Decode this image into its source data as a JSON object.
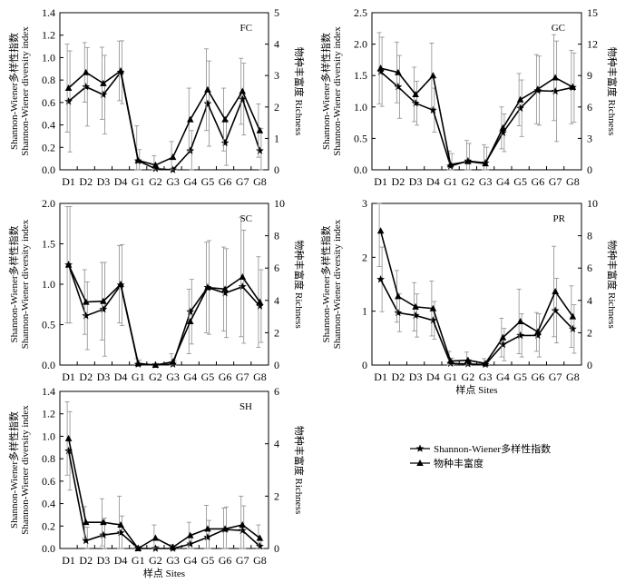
{
  "x_categories": [
    "D1",
    "D2",
    "D3",
    "D4",
    "G1",
    "G2",
    "G3",
    "G4",
    "G5",
    "G6",
    "G7",
    "G8"
  ],
  "legend": {
    "entries": [
      {
        "label": "Shannon-Wiener多样性指数",
        "marker": "star"
      },
      {
        "label": "物种丰富度",
        "marker": "triangle"
      }
    ],
    "placement": "lower-right"
  },
  "chart_data": [
    {
      "type": "line",
      "panel_label": "FC",
      "ylabel_left": [
        "Shannon-Wiener多样性指数",
        "Shannon-Wiener diversity index"
      ],
      "ylabel_right": "物种丰富度 Richness",
      "xlabel": "",
      "ylim_left": [
        0,
        1.4
      ],
      "yticks_left": [
        0,
        0.2,
        0.4,
        0.6,
        0.8,
        1.0,
        1.2,
        1.4
      ],
      "yfmt_left": 1,
      "ylim_right": [
        0,
        5
      ],
      "yticks_right": [
        0,
        1,
        2,
        3,
        4,
        5
      ],
      "yfmt_right": 0,
      "series": [
        {
          "marker": "star",
          "axis": "left",
          "values": [
            0.61,
            0.74,
            0.67,
            0.87,
            0.08,
            0.01,
            0.0,
            0.17,
            0.59,
            0.24,
            0.63,
            0.17
          ],
          "errors": [
            0.45,
            0.35,
            0.35,
            0.28,
            0.1,
            0.04,
            0.02,
            0.18,
            0.38,
            0.2,
            0.32,
            0.2
          ]
        },
        {
          "marker": "triangle",
          "axis": "right",
          "values": [
            2.6,
            3.1,
            2.75,
            3.15,
            0.3,
            0.15,
            0.4,
            1.6,
            2.55,
            1.6,
            2.5,
            1.25
          ],
          "errors": [
            1.4,
            0.95,
            1.15,
            0.95,
            1.1,
            0.3,
            0.5,
            1.0,
            1.3,
            1.0,
            1.05,
            0.85
          ]
        }
      ]
    },
    {
      "type": "line",
      "panel_label": "GC",
      "ylabel_left": [
        "Shannon-Wiener多样性指数",
        "Shannon-Wiener diversity index"
      ],
      "ylabel_right": "物种丰富度 Richness",
      "xlabel": "",
      "ylim_left": [
        0,
        2.5
      ],
      "yticks_left": [
        0,
        0.5,
        1.0,
        1.5,
        2.0,
        2.5
      ],
      "yfmt_left": 1,
      "ylim_right": [
        0,
        15
      ],
      "yticks_right": [
        0,
        3,
        6,
        9,
        12,
        15
      ],
      "yfmt_right": 0,
      "series": [
        {
          "marker": "star",
          "axis": "left",
          "values": [
            1.56,
            1.32,
            1.06,
            0.95,
            0.06,
            0.14,
            0.11,
            0.59,
            0.98,
            1.26,
            1.25,
            1.31
          ],
          "errors": [
            0.55,
            0.5,
            0.35,
            0.35,
            0.2,
            0.28,
            0.25,
            0.3,
            0.45,
            0.55,
            0.8,
            0.55
          ]
        },
        {
          "marker": "triangle",
          "axis": "right",
          "values": [
            9.7,
            9.3,
            7.2,
            9.0,
            0.5,
            0.8,
            0.6,
            4.0,
            6.7,
            7.7,
            8.8,
            7.9
          ],
          "errors": [
            3.4,
            2.9,
            2.6,
            3.1,
            1.3,
            2.0,
            1.8,
            2.0,
            2.5,
            3.3,
            4.1,
            3.5
          ]
        }
      ]
    },
    {
      "type": "line",
      "panel_label": "SC",
      "ylabel_left": [
        "Shannon-Wiener多样性指数",
        "Shannon-Wiener diversity index"
      ],
      "ylabel_right": "物种丰富度 Richness",
      "xlabel": "",
      "ylim_left": [
        0,
        2.0
      ],
      "yticks_left": [
        0,
        0.5,
        1.0,
        1.5,
        2.0
      ],
      "yfmt_left": 1,
      "ylim_right": [
        0,
        10
      ],
      "yticks_right": [
        0,
        2,
        4,
        6,
        8,
        10
      ],
      "yfmt_right": 0,
      "series": [
        {
          "marker": "star",
          "axis": "left",
          "values": [
            1.24,
            0.61,
            0.69,
            0.99,
            0.01,
            0.0,
            0.01,
            0.66,
            0.96,
            0.89,
            0.97,
            0.73
          ],
          "errors": [
            0.72,
            0.42,
            0.58,
            0.5,
            0.05,
            0.02,
            0.04,
            0.4,
            0.58,
            0.55,
            0.7,
            0.45
          ]
        },
        {
          "marker": "triangle",
          "axis": "right",
          "values": [
            6.2,
            3.9,
            3.95,
            5.0,
            0.1,
            0.0,
            0.2,
            2.7,
            4.8,
            4.7,
            5.45,
            3.9
          ],
          "errors": [
            3.6,
            2.0,
            2.4,
            2.4,
            0.3,
            0.1,
            0.5,
            2.0,
            2.8,
            2.6,
            3.7,
            2.8
          ]
        }
      ]
    },
    {
      "type": "line",
      "panel_label": "PR",
      "ylabel_left": [
        "Shannon-Wiener多样性指数",
        "Shannon-Wiener diversity index"
      ],
      "ylabel_right": "物种丰富度 Richness",
      "xlabel": "样点 Sites",
      "ylim_left": [
        0,
        3
      ],
      "yticks_left": [
        0,
        1,
        2,
        3
      ],
      "yfmt_left": 0,
      "ylim_right": [
        0,
        10
      ],
      "yticks_right": [
        0,
        2,
        4,
        6,
        8,
        10
      ],
      "yfmt_right": 0,
      "series": [
        {
          "marker": "star",
          "axis": "left",
          "values": [
            1.59,
            0.97,
            0.92,
            0.83,
            0.03,
            0.02,
            0.01,
            0.38,
            0.55,
            0.55,
            1.01,
            0.67
          ],
          "errors": [
            0.6,
            0.35,
            0.4,
            0.35,
            0.1,
            0.08,
            0.05,
            0.3,
            0.4,
            0.4,
            0.6,
            0.45
          ]
        },
        {
          "marker": "triangle",
          "axis": "right",
          "values": [
            8.3,
            4.25,
            3.6,
            3.5,
            0.25,
            0.3,
            0.1,
            1.7,
            2.7,
            2.05,
            4.55,
            3.0
          ],
          "errors": [
            2.2,
            1.6,
            1.5,
            1.7,
            0.6,
            0.5,
            0.3,
            1.2,
            2.0,
            1.2,
            2.8,
            1.9
          ]
        }
      ]
    },
    {
      "type": "line",
      "panel_label": "SH",
      "ylabel_left": [
        "Shannon-Wiener多样性指数",
        "Shannon-Wiener diversity index"
      ],
      "ylabel_right": "物种丰富度 Richness",
      "xlabel": "样点 Sites",
      "ylim_left": [
        0,
        1.4
      ],
      "yticks_left": [
        0,
        0.2,
        0.4,
        0.6,
        0.8,
        1.0,
        1.2,
        1.4
      ],
      "yfmt_left": 1,
      "ylim_right": [
        0,
        6
      ],
      "yticks_right": [
        0,
        2,
        4,
        6
      ],
      "yfmt_right": 0,
      "series": [
        {
          "marker": "star",
          "axis": "left",
          "values": [
            0.87,
            0.07,
            0.12,
            0.14,
            0.0,
            0.0,
            0.0,
            0.04,
            0.1,
            0.17,
            0.16,
            0.02
          ],
          "errors": [
            0.35,
            0.12,
            0.15,
            0.15,
            0.02,
            0.02,
            0.02,
            0.08,
            0.15,
            0.2,
            0.22,
            0.05
          ]
        },
        {
          "marker": "triangle",
          "axis": "right",
          "values": [
            4.2,
            1.0,
            1.0,
            0.9,
            0.0,
            0.4,
            0.05,
            0.5,
            0.75,
            0.75,
            0.9,
            0.4
          ],
          "errors": [
            1.4,
            0.6,
            0.9,
            1.1,
            0.1,
            0.5,
            0.1,
            0.5,
            0.9,
            0.8,
            1.1,
            0.5
          ]
        }
      ]
    }
  ]
}
